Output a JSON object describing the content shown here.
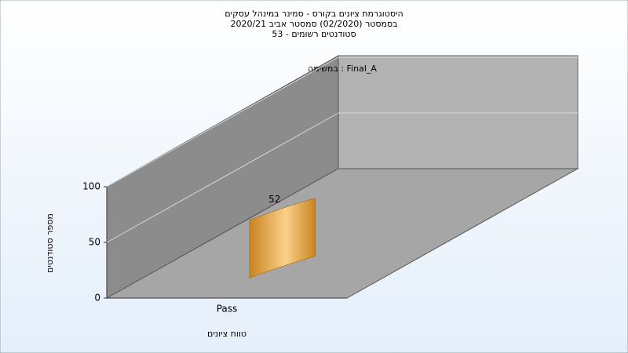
{
  "chart_data": {
    "type": "bar3d",
    "title_lines": [
      "היסטוגרמת ציונים בקורס - סמינר במינהל עסקים",
      "בסמסטר  (02/2020)  סמסטר אביב 2020/21",
      "סטודנטים רשומים - 53"
    ],
    "annotation": "במשימה : Final_A",
    "y_label": "מספר סטודנטים",
    "x_label": "טווח ציונים",
    "categories": [
      "Pass"
    ],
    "values": [
      52
    ],
    "value_labels": [
      "52"
    ],
    "color": "#f0a840",
    "ylim": [
      0,
      100
    ],
    "yticks": [
      0,
      50,
      100
    ],
    "grid": true
  }
}
